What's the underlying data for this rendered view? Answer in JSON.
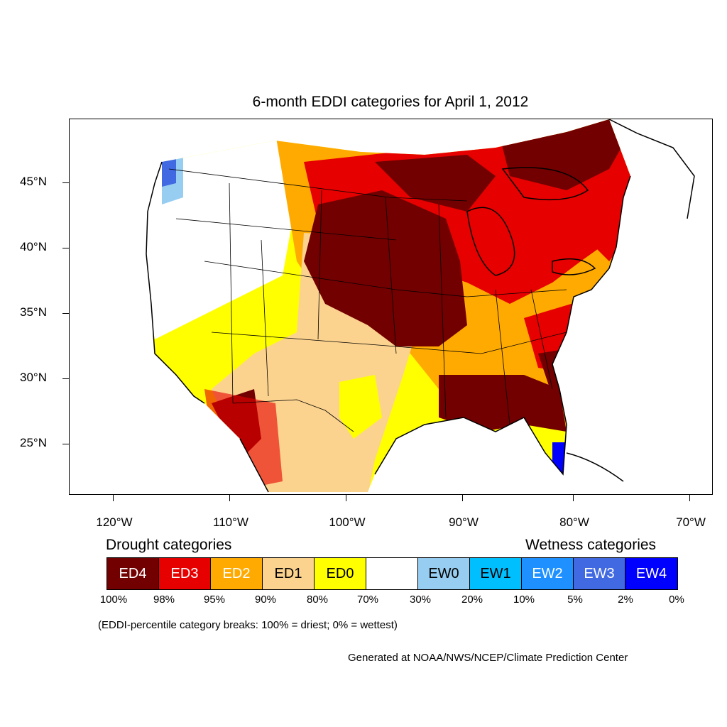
{
  "title": "6-month EDDI categories for April 1, 2012",
  "map": {
    "lat_labels": [
      "45°N",
      "40°N",
      "35°N",
      "30°N",
      "25°N"
    ],
    "lon_labels": [
      "120°W",
      "110°W",
      "100°W",
      "90°W",
      "80°W",
      "70°W"
    ],
    "dominant_categories": {
      "upper_midwest_and_plains": "ED4",
      "great_lakes_and_northeast": "ED3",
      "southeast_and_gulf_coast": "ED4",
      "southern_plains": "ED1",
      "intermountain_west": "ED0",
      "pacific_northwest_coast": "EW3",
      "south_florida": "EW4"
    }
  },
  "legend": {
    "drought_heading": "Drought categories",
    "wetness_heading": "Wetness categories",
    "categories": [
      {
        "label": "ED4",
        "color": "#730000",
        "text_color": "#ffffff"
      },
      {
        "label": "ED3",
        "color": "#e60000",
        "text_color": "#ffffff"
      },
      {
        "label": "ED2",
        "color": "#ffaa00",
        "text_color": "#ffffff"
      },
      {
        "label": "ED1",
        "color": "#fcd38e",
        "text_color": "#000000"
      },
      {
        "label": "ED0",
        "color": "#ffff00",
        "text_color": "#000000"
      },
      {
        "label": "",
        "color": "#ffffff",
        "text_color": "#000000"
      },
      {
        "label": "EW0",
        "color": "#96cdf0",
        "text_color": "#000000"
      },
      {
        "label": "EW1",
        "color": "#00bfff",
        "text_color": "#000000"
      },
      {
        "label": "EW2",
        "color": "#1e90ff",
        "text_color": "#ffffff"
      },
      {
        "label": "EW3",
        "color": "#4169e1",
        "text_color": "#ffffff"
      },
      {
        "label": "EW4",
        "color": "#0000ff",
        "text_color": "#ffffff"
      }
    ],
    "percentiles": [
      "100%",
      "98%",
      "95%",
      "90%",
      "80%",
      "70%",
      "30%",
      "20%",
      "10%",
      "5%",
      "2%",
      "0%"
    ],
    "note": "(EDDI-percentile category breaks: 100% = driest; 0% = wettest)"
  },
  "credit": "Generated at NOAA/NWS/NCEP/Climate Prediction Center"
}
